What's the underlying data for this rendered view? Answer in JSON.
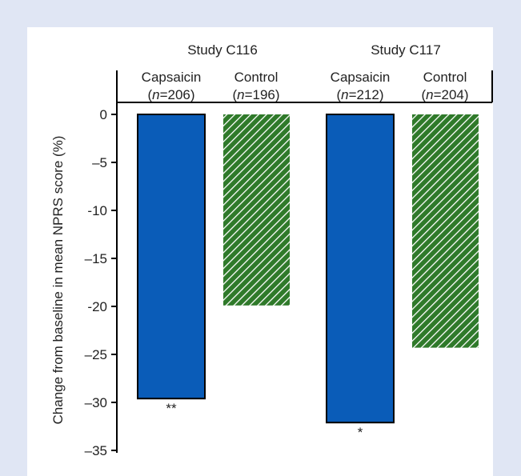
{
  "colors": {
    "background": "#e0e6f4",
    "panel": "#ffffff",
    "capsaicin": "#0a5cb8",
    "control_dark": "#2f7a2a",
    "control_light": "#ffffff",
    "axis": "#000000"
  },
  "chart_data": {
    "type": "bar",
    "title": "",
    "xlabel": "",
    "ylabel": "Change from baseline in mean NPRS score (%)",
    "ylim": [
      -35,
      0
    ],
    "yticks": [
      0,
      -5,
      -10,
      -15,
      -20,
      -25,
      -30,
      -35
    ],
    "ytick_labels": [
      "0",
      "–5",
      "-10",
      "–15",
      "-20",
      "–25",
      "–30",
      "–35"
    ],
    "grid": false,
    "studies": [
      {
        "name": "Study C116",
        "bars": [
          {
            "label": "Capsaicin",
            "n_prefix": "(",
            "n_italic": "n",
            "n_suffix": "=206)",
            "value": -29.6,
            "fill": "solid",
            "annotation": "**"
          },
          {
            "label": "Control",
            "n_prefix": "(",
            "n_italic": "n",
            "n_suffix": "=196)",
            "value": -19.9,
            "fill": "hatched",
            "annotation": ""
          }
        ]
      },
      {
        "name": "Study C117",
        "bars": [
          {
            "label": "Capsaicin",
            "n_prefix": "(",
            "n_italic": "n",
            "n_suffix": "=212)",
            "value": -32.1,
            "fill": "solid",
            "annotation": "*"
          },
          {
            "label": "Control",
            "n_prefix": "(",
            "n_italic": "n",
            "n_suffix": "=204)",
            "value": -24.3,
            "fill": "hatched",
            "annotation": ""
          }
        ]
      }
    ]
  }
}
